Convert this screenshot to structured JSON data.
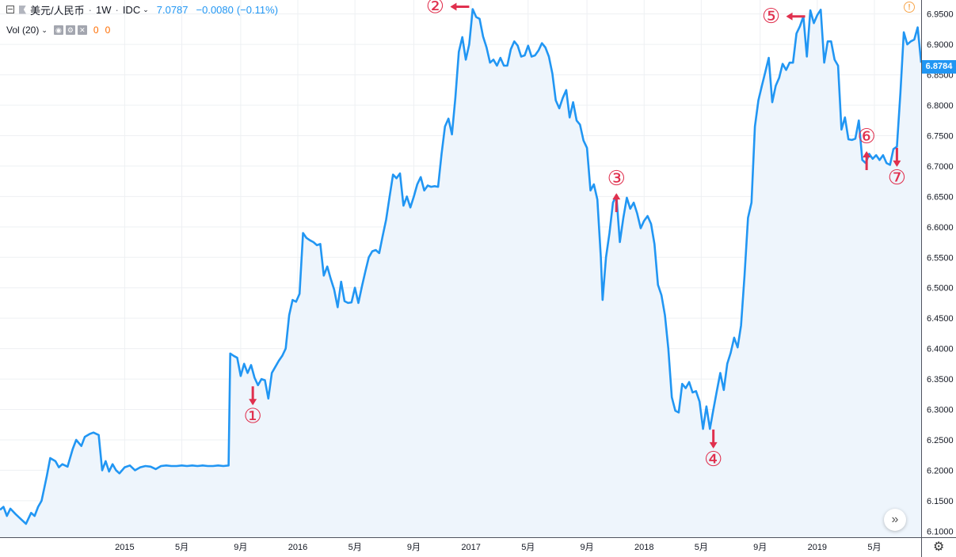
{
  "header": {
    "symbol": "美元/人民币",
    "interval": "1W",
    "exchange": "IDC",
    "last": "7.0787",
    "change": "−0.0080",
    "change_pct": "(−0.11%)"
  },
  "volume_indicator": {
    "label": "Vol (20)",
    "value1": "0",
    "value2": "0"
  },
  "price_tag": "6.8784",
  "colors": {
    "line": "#2196f3",
    "area_fill": "#eef5fc",
    "marker": "#e0304e",
    "grid": "#eef0f3",
    "axis_text": "#131722",
    "price_tag_bg": "#2196f3"
  },
  "icons": {
    "collapse": "collapse-square-icon",
    "flag": "flag-icon",
    "alert": "alert-exclamation-icon",
    "scroll": "double-chevron-right-icon",
    "settings": "gear-icon",
    "eye": "eye-icon",
    "gear_small": "settings-icon",
    "close": "close-icon"
  },
  "chart_data": {
    "type": "line",
    "style": "area",
    "x_unit": "year (fractional)",
    "xlim": [
      2014.28,
      2019.6
    ],
    "ylim": [
      6.09,
      6.973
    ],
    "y_ticks": [
      "6.1000",
      "6.1500",
      "6.2000",
      "6.2500",
      "6.3000",
      "6.3500",
      "6.4000",
      "6.4500",
      "6.5000",
      "6.5500",
      "6.6000",
      "6.6500",
      "6.7000",
      "6.7500",
      "6.8000",
      "6.8500",
      "6.9000",
      "6.9500"
    ],
    "x_ticks": [
      {
        "x": 2015.0,
        "label": "2015"
      },
      {
        "x": 2015.33,
        "label": "5月"
      },
      {
        "x": 2015.67,
        "label": "9月"
      },
      {
        "x": 2016.0,
        "label": "2016"
      },
      {
        "x": 2016.33,
        "label": "5月"
      },
      {
        "x": 2016.67,
        "label": "9月"
      },
      {
        "x": 2017.0,
        "label": "2017"
      },
      {
        "x": 2017.33,
        "label": "5月"
      },
      {
        "x": 2017.67,
        "label": "9月"
      },
      {
        "x": 2018.0,
        "label": "2018"
      },
      {
        "x": 2018.33,
        "label": "5月"
      },
      {
        "x": 2018.67,
        "label": "9月"
      },
      {
        "x": 2019.0,
        "label": "2019"
      },
      {
        "x": 2019.33,
        "label": "5月"
      }
    ],
    "grid": true,
    "series": [
      {
        "points": [
          [
            2014.28,
            6.135
          ],
          [
            2014.3,
            6.14
          ],
          [
            2014.32,
            6.125
          ],
          [
            2014.34,
            6.137
          ],
          [
            2014.37,
            6.128
          ],
          [
            2014.4,
            6.12
          ],
          [
            2014.43,
            6.112
          ],
          [
            2014.46,
            6.13
          ],
          [
            2014.48,
            6.125
          ],
          [
            2014.5,
            6.14
          ],
          [
            2014.52,
            6.15
          ],
          [
            2014.55,
            6.19
          ],
          [
            2014.57,
            6.22
          ],
          [
            2014.6,
            6.215
          ],
          [
            2014.62,
            6.205
          ],
          [
            2014.64,
            6.21
          ],
          [
            2014.67,
            6.206
          ],
          [
            2014.7,
            6.235
          ],
          [
            2014.72,
            6.25
          ],
          [
            2014.75,
            6.24
          ],
          [
            2014.77,
            6.255
          ],
          [
            2014.8,
            6.26
          ],
          [
            2014.82,
            6.262
          ],
          [
            2014.85,
            6.258
          ],
          [
            2014.87,
            6.2
          ],
          [
            2014.89,
            6.215
          ],
          [
            2014.91,
            6.198
          ],
          [
            2014.93,
            6.21
          ],
          [
            2014.95,
            6.2
          ],
          [
            2014.97,
            6.195
          ],
          [
            2015.0,
            6.205
          ],
          [
            2015.03,
            6.208
          ],
          [
            2015.06,
            6.2
          ],
          [
            2015.09,
            6.205
          ],
          [
            2015.12,
            6.207
          ],
          [
            2015.15,
            6.206
          ],
          [
            2015.18,
            6.202
          ],
          [
            2015.21,
            6.207
          ],
          [
            2015.24,
            6.208
          ],
          [
            2015.27,
            6.207
          ],
          [
            2015.3,
            6.207
          ],
          [
            2015.33,
            6.208
          ],
          [
            2015.36,
            6.207
          ],
          [
            2015.39,
            6.208
          ],
          [
            2015.42,
            6.207
          ],
          [
            2015.45,
            6.208
          ],
          [
            2015.48,
            6.207
          ],
          [
            2015.51,
            6.207
          ],
          [
            2015.54,
            6.208
          ],
          [
            2015.57,
            6.207
          ],
          [
            2015.6,
            6.208
          ],
          [
            2015.61,
            6.392
          ],
          [
            2015.63,
            6.388
          ],
          [
            2015.65,
            6.385
          ],
          [
            2015.67,
            6.355
          ],
          [
            2015.69,
            6.375
          ],
          [
            2015.71,
            6.36
          ],
          [
            2015.73,
            6.373
          ],
          [
            2015.75,
            6.352
          ],
          [
            2015.77,
            6.34
          ],
          [
            2015.79,
            6.35
          ],
          [
            2015.81,
            6.348
          ],
          [
            2015.83,
            6.318
          ],
          [
            2015.85,
            6.36
          ],
          [
            2015.87,
            6.37
          ],
          [
            2015.89,
            6.38
          ],
          [
            2015.91,
            6.388
          ],
          [
            2015.93,
            6.4
          ],
          [
            2015.95,
            6.455
          ],
          [
            2015.97,
            6.48
          ],
          [
            2015.99,
            6.477
          ],
          [
            2016.01,
            6.49
          ],
          [
            2016.03,
            6.59
          ],
          [
            2016.05,
            6.582
          ],
          [
            2016.07,
            6.578
          ],
          [
            2016.09,
            6.575
          ],
          [
            2016.11,
            6.57
          ],
          [
            2016.13,
            6.572
          ],
          [
            2016.15,
            6.52
          ],
          [
            2016.17,
            6.535
          ],
          [
            2016.19,
            6.515
          ],
          [
            2016.21,
            6.497
          ],
          [
            2016.23,
            6.468
          ],
          [
            2016.25,
            6.51
          ],
          [
            2016.27,
            6.478
          ],
          [
            2016.29,
            6.475
          ],
          [
            2016.31,
            6.476
          ],
          [
            2016.33,
            6.5
          ],
          [
            2016.35,
            6.475
          ],
          [
            2016.37,
            6.502
          ],
          [
            2016.39,
            6.527
          ],
          [
            2016.41,
            6.55
          ],
          [
            2016.43,
            6.56
          ],
          [
            2016.45,
            6.562
          ],
          [
            2016.47,
            6.557
          ],
          [
            2016.49,
            6.585
          ],
          [
            2016.51,
            6.612
          ],
          [
            2016.53,
            6.65
          ],
          [
            2016.55,
            6.686
          ],
          [
            2016.57,
            6.68
          ],
          [
            2016.59,
            6.688
          ],
          [
            2016.61,
            6.635
          ],
          [
            2016.63,
            6.65
          ],
          [
            2016.65,
            6.632
          ],
          [
            2016.67,
            6.65
          ],
          [
            2016.69,
            6.67
          ],
          [
            2016.71,
            6.682
          ],
          [
            2016.73,
            6.66
          ],
          [
            2016.75,
            6.668
          ],
          [
            2016.77,
            6.666
          ],
          [
            2016.79,
            6.667
          ],
          [
            2016.81,
            6.666
          ],
          [
            2016.83,
            6.72
          ],
          [
            2016.85,
            6.765
          ],
          [
            2016.87,
            6.778
          ],
          [
            2016.89,
            6.752
          ],
          [
            2016.91,
            6.812
          ],
          [
            2016.93,
            6.888
          ],
          [
            2016.95,
            6.912
          ],
          [
            2016.97,
            6.875
          ],
          [
            2016.99,
            6.9
          ],
          [
            2017.01,
            6.958
          ],
          [
            2017.03,
            6.945
          ],
          [
            2017.05,
            6.942
          ],
          [
            2017.07,
            6.913
          ],
          [
            2017.09,
            6.895
          ],
          [
            2017.11,
            6.87
          ],
          [
            2017.13,
            6.875
          ],
          [
            2017.15,
            6.865
          ],
          [
            2017.17,
            6.878
          ],
          [
            2017.19,
            6.865
          ],
          [
            2017.21,
            6.865
          ],
          [
            2017.23,
            6.892
          ],
          [
            2017.25,
            6.905
          ],
          [
            2017.27,
            6.898
          ],
          [
            2017.29,
            6.88
          ],
          [
            2017.31,
            6.882
          ],
          [
            2017.33,
            6.898
          ],
          [
            2017.35,
            6.88
          ],
          [
            2017.37,
            6.882
          ],
          [
            2017.39,
            6.89
          ],
          [
            2017.41,
            6.902
          ],
          [
            2017.43,
            6.895
          ],
          [
            2017.45,
            6.88
          ],
          [
            2017.47,
            6.852
          ],
          [
            2017.49,
            6.808
          ],
          [
            2017.51,
            6.795
          ],
          [
            2017.53,
            6.812
          ],
          [
            2017.55,
            6.825
          ],
          [
            2017.57,
            6.78
          ],
          [
            2017.59,
            6.805
          ],
          [
            2017.61,
            6.775
          ],
          [
            2017.63,
            6.768
          ],
          [
            2017.65,
            6.742
          ],
          [
            2017.67,
            6.73
          ],
          [
            2017.69,
            6.66
          ],
          [
            2017.71,
            6.67
          ],
          [
            2017.73,
            6.645
          ],
          [
            2017.75,
            6.55
          ],
          [
            2017.76,
            6.48
          ],
          [
            2017.78,
            6.55
          ],
          [
            2017.8,
            6.59
          ],
          [
            2017.82,
            6.64
          ],
          [
            2017.84,
            6.652
          ],
          [
            2017.86,
            6.575
          ],
          [
            2017.88,
            6.615
          ],
          [
            2017.9,
            6.648
          ],
          [
            2017.92,
            6.63
          ],
          [
            2017.94,
            6.64
          ],
          [
            2017.96,
            6.622
          ],
          [
            2017.98,
            6.598
          ],
          [
            2018.0,
            6.61
          ],
          [
            2018.02,
            6.618
          ],
          [
            2018.04,
            6.605
          ],
          [
            2018.06,
            6.572
          ],
          [
            2018.08,
            6.505
          ],
          [
            2018.1,
            6.488
          ],
          [
            2018.12,
            6.455
          ],
          [
            2018.14,
            6.4
          ],
          [
            2018.16,
            6.32
          ],
          [
            2018.18,
            6.298
          ],
          [
            2018.2,
            6.295
          ],
          [
            2018.22,
            6.342
          ],
          [
            2018.24,
            6.335
          ],
          [
            2018.26,
            6.345
          ],
          [
            2018.28,
            6.328
          ],
          [
            2018.3,
            6.33
          ],
          [
            2018.32,
            6.313
          ],
          [
            2018.34,
            6.268
          ],
          [
            2018.36,
            6.305
          ],
          [
            2018.38,
            6.268
          ],
          [
            2018.4,
            6.3
          ],
          [
            2018.42,
            6.33
          ],
          [
            2018.44,
            6.36
          ],
          [
            2018.46,
            6.332
          ],
          [
            2018.48,
            6.375
          ],
          [
            2018.5,
            6.393
          ],
          [
            2018.52,
            6.418
          ],
          [
            2018.54,
            6.402
          ],
          [
            2018.56,
            6.438
          ],
          [
            2018.58,
            6.52
          ],
          [
            2018.6,
            6.615
          ],
          [
            2018.62,
            6.64
          ],
          [
            2018.64,
            6.765
          ],
          [
            2018.66,
            6.808
          ],
          [
            2018.68,
            6.832
          ],
          [
            2018.7,
            6.855
          ],
          [
            2018.72,
            6.878
          ],
          [
            2018.74,
            6.805
          ],
          [
            2018.76,
            6.832
          ],
          [
            2018.78,
            6.845
          ],
          [
            2018.8,
            6.868
          ],
          [
            2018.82,
            6.858
          ],
          [
            2018.84,
            6.87
          ],
          [
            2018.86,
            6.87
          ],
          [
            2018.88,
            6.918
          ],
          [
            2018.9,
            6.93
          ],
          [
            2018.92,
            6.946
          ],
          [
            2018.94,
            6.88
          ],
          [
            2018.96,
            6.956
          ],
          [
            2018.98,
            6.935
          ],
          [
            2019.0,
            6.948
          ],
          [
            2019.02,
            6.957
          ],
          [
            2019.04,
            6.87
          ],
          [
            2019.06,
            6.905
          ],
          [
            2019.08,
            6.905
          ],
          [
            2019.1,
            6.875
          ],
          [
            2019.12,
            6.865
          ],
          [
            2019.14,
            6.76
          ],
          [
            2019.16,
            6.78
          ],
          [
            2019.18,
            6.744
          ],
          [
            2019.2,
            6.743
          ],
          [
            2019.22,
            6.745
          ],
          [
            2019.24,
            6.775
          ],
          [
            2019.26,
            6.71
          ],
          [
            2019.28,
            6.705
          ],
          [
            2019.3,
            6.72
          ],
          [
            2019.32,
            6.712
          ],
          [
            2019.34,
            6.718
          ],
          [
            2019.36,
            6.71
          ],
          [
            2019.38,
            6.718
          ],
          [
            2019.4,
            6.705
          ],
          [
            2019.42,
            6.702
          ],
          [
            2019.44,
            6.728
          ],
          [
            2019.46,
            6.732
          ],
          [
            2019.48,
            6.82
          ],
          [
            2019.5,
            6.92
          ],
          [
            2019.52,
            6.9
          ],
          [
            2019.54,
            6.905
          ],
          [
            2019.56,
            6.908
          ],
          [
            2019.58,
            6.928
          ],
          [
            2019.6,
            6.87
          ]
        ]
      }
    ],
    "annotations": [
      {
        "label": "①",
        "x": 2015.74,
        "y": 6.338,
        "direction": "down"
      },
      {
        "label": "②",
        "x": 2016.99,
        "y": 6.962,
        "direction": "left"
      },
      {
        "label": "③",
        "x": 2017.84,
        "y": 6.653,
        "direction": "up"
      },
      {
        "label": "④",
        "x": 2018.4,
        "y": 6.267,
        "direction": "down"
      },
      {
        "label": "⑤",
        "x": 2018.93,
        "y": 6.946,
        "direction": "left"
      },
      {
        "label": "⑥",
        "x": 2019.285,
        "y": 6.722,
        "direction": "up"
      },
      {
        "label": "⑦",
        "x": 2019.46,
        "y": 6.73,
        "direction": "down"
      }
    ]
  }
}
